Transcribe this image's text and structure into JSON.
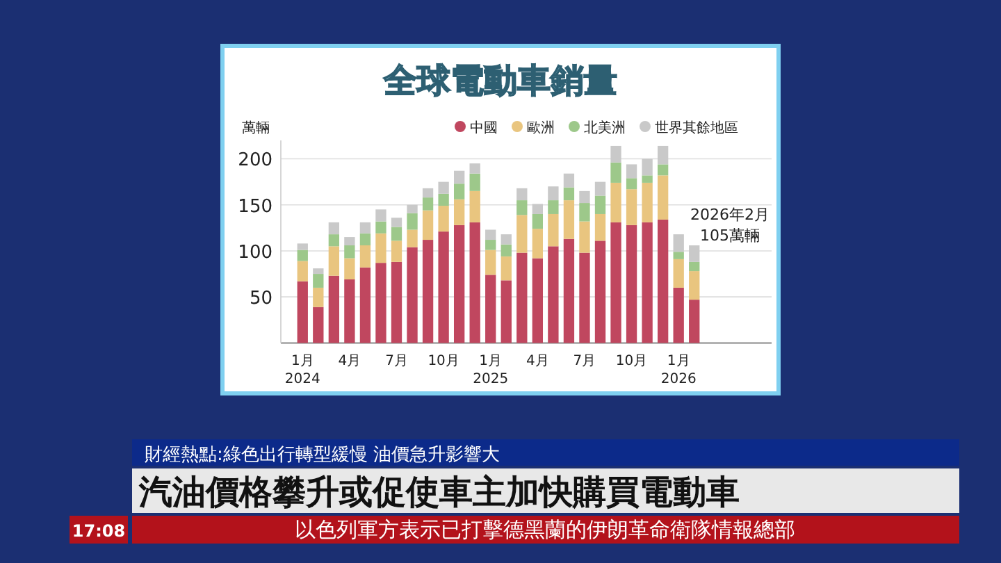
{
  "chart_data": {
    "type": "bar",
    "stacked": true,
    "title": "全球電動車銷量",
    "ylabel": "萬輛",
    "categories": [
      "1月 2024",
      null,
      null,
      "4月",
      null,
      null,
      "7月",
      null,
      null,
      "10月",
      null,
      null,
      "1月 2025",
      null,
      null,
      "4月",
      null,
      null,
      "7月",
      null,
      null,
      "10月",
      null,
      null,
      "1月 2026",
      null
    ],
    "series": [
      {
        "name": "中國",
        "color": "#c0475f",
        "values": [
          67,
          39,
          73,
          69,
          82,
          87,
          88,
          104,
          112,
          121,
          128,
          131,
          74,
          68,
          98,
          92,
          105,
          113,
          98,
          111,
          131,
          128,
          131,
          134,
          60,
          47
        ]
      },
      {
        "name": "歐洲",
        "color": "#e9c57f",
        "values": [
          22,
          21,
          32,
          23,
          24,
          32,
          23,
          19,
          32,
          28,
          28,
          34,
          27,
          26,
          41,
          32,
          35,
          42,
          34,
          29,
          43,
          39,
          43,
          48,
          31,
          31
        ]
      },
      {
        "name": "北美洲",
        "color": "#9dc88a",
        "values": [
          12,
          15,
          13,
          14,
          13,
          13,
          15,
          18,
          14,
          13,
          17,
          19,
          11,
          13,
          16,
          16,
          15,
          14,
          20,
          20,
          22,
          12,
          8,
          12,
          8,
          10
        ]
      },
      {
        "name": "世界其餘地區",
        "color": "#c9c9c9",
        "values": [
          7,
          6,
          13,
          9,
          12,
          13,
          10,
          9,
          10,
          13,
          14,
          11,
          11,
          11,
          13,
          11,
          15,
          15,
          13,
          15,
          18,
          15,
          18,
          20,
          19,
          18
        ]
      }
    ],
    "ylim": [
      0,
      220
    ],
    "yticks": [
      50,
      100,
      150,
      200
    ],
    "grid": "y",
    "legend": "top right",
    "annotations": [
      "2026年2月 105萬輛",
      "財經熱點:綠色出行轉型緩慢 油價急升影響大",
      "汽油價格攀升或促使車主加快購買電動車",
      "以色列軍方表示已打擊德黑蘭的伊朗革命衛隊情報總部",
      "17:08"
    ]
  }
}
